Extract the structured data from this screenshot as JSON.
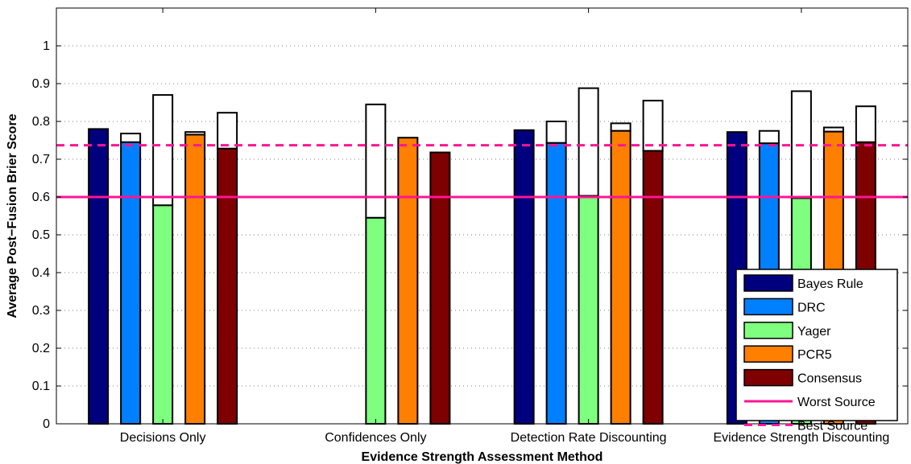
{
  "chart_data": {
    "type": "bar",
    "title": "",
    "xlabel": "Evidence Strength Assessment Method",
    "ylabel": "Average Post−Fusion Brier Score",
    "ylim": [
      0,
      1.1
    ],
    "yticks": [
      "0",
      "0.1",
      "0.2",
      "0.3",
      "0.4",
      "0.5",
      "0.6",
      "0.7",
      "0.8",
      "0.9",
      "1"
    ],
    "grid": "dotted horizontal",
    "legend_position": "bottom-right",
    "categories": [
      "Decisions Only",
      "Confidences Only",
      "Detection Rate Discounting",
      "Evidence Strength Discounting"
    ],
    "series": [
      {
        "name": "Bayes Rule",
        "color": "#00007f",
        "values": [
          0.78,
          0.0,
          0.777,
          0.772
        ],
        "upper": [
          0.78,
          0.0,
          0.777,
          0.772
        ]
      },
      {
        "name": "DRC",
        "color": "#007fff",
        "values": [
          0.745,
          0.0,
          0.743,
          0.742
        ],
        "upper": [
          0.768,
          0.0,
          0.8,
          0.775
        ]
      },
      {
        "name": "Yager",
        "color": "#7fff7f",
        "values": [
          0.578,
          0.545,
          0.603,
          0.597
        ],
        "upper": [
          0.87,
          0.845,
          0.888,
          0.88
        ]
      },
      {
        "name": "PCR5",
        "color": "#ff7f00",
        "values": [
          0.765,
          0.757,
          0.775,
          0.773
        ],
        "upper": [
          0.772,
          0.757,
          0.795,
          0.784
        ]
      },
      {
        "name": "Consensus",
        "color": "#7f0000",
        "values": [
          0.728,
          0.718,
          0.722,
          0.745
        ],
        "upper": [
          0.823,
          0.718,
          0.855,
          0.84
        ]
      }
    ],
    "reference_lines": [
      {
        "name": "Worst Source",
        "value": 0.6,
        "color": "#ff1493",
        "style": "solid"
      },
      {
        "name": "Best Source",
        "value": 0.737,
        "color": "#ff1493",
        "style": "dashed"
      }
    ]
  }
}
